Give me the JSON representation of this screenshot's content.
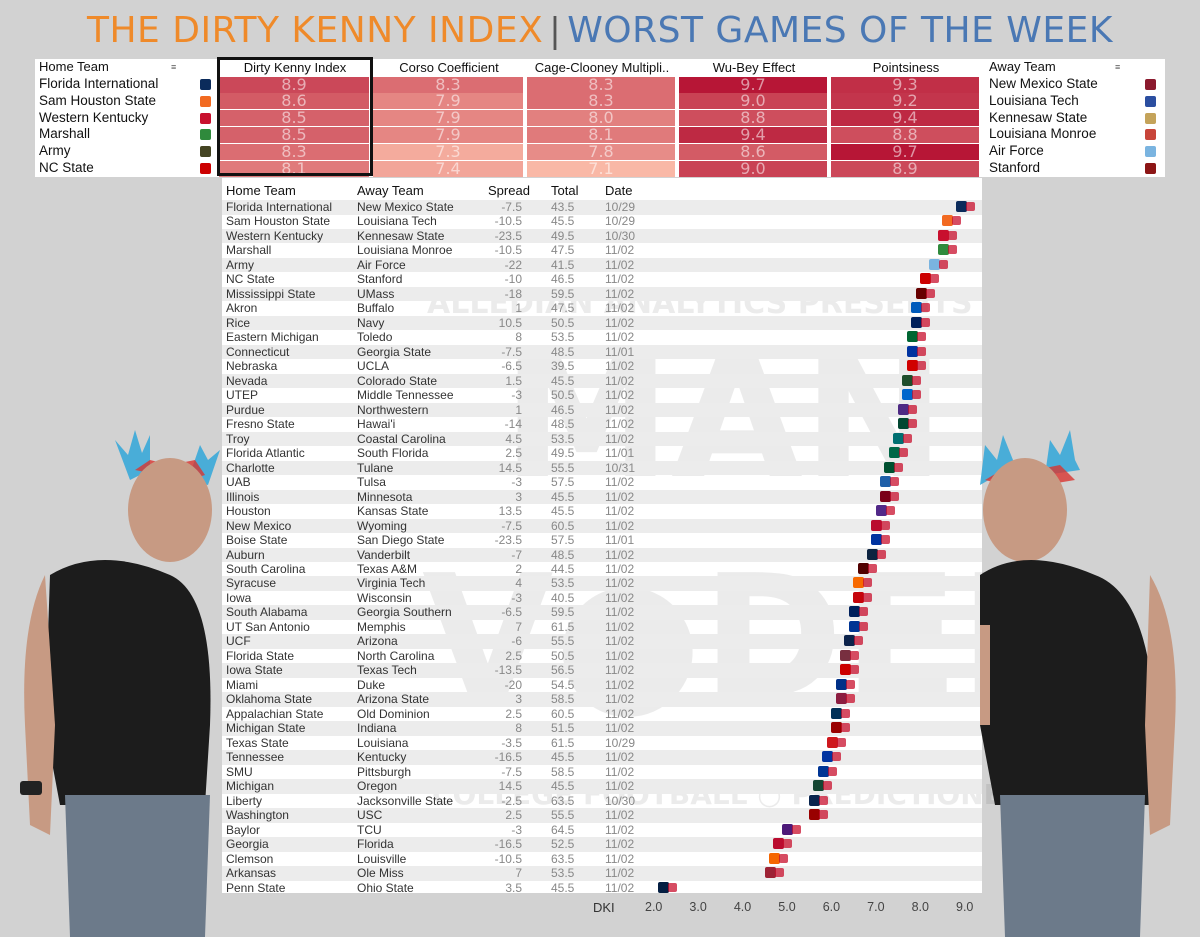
{
  "title": {
    "part1": "THE DIRTY KENNY INDEX",
    "separator": "|",
    "part2": "WORST GAMES OF THE WEEK"
  },
  "top_table": {
    "home_header": "Home Team",
    "away_header": "Away Team",
    "metric_headers": [
      "Dirty Kenny Index",
      "Corso Coefficient",
      "Cage-Clooney Multipli..",
      "Wu-Bey Effect",
      "Pointsiness"
    ],
    "rows": [
      {
        "home": "Florida International",
        "away": "New Mexico State",
        "values": [
          "8.9",
          "8.3",
          "8.3",
          "9.7",
          "9.3"
        ],
        "home_color": "#0b2b5b",
        "away_color": "#8b1a2e"
      },
      {
        "home": "Sam Houston State",
        "away": "Louisiana Tech",
        "values": [
          "8.6",
          "7.9",
          "8.3",
          "9.0",
          "9.2"
        ],
        "home_color": "#f26a21",
        "away_color": "#2b4ea0"
      },
      {
        "home": "Western Kentucky",
        "away": "Kennesaw State",
        "values": [
          "8.5",
          "7.9",
          "8.0",
          "8.8",
          "9.4"
        ],
        "home_color": "#c8102e",
        "away_color": "#c4a35a"
      },
      {
        "home": "Marshall",
        "away": "Louisiana Monroe",
        "values": [
          "8.5",
          "7.9",
          "8.1",
          "9.4",
          "8.8"
        ],
        "home_color": "#2f8a3c",
        "away_color": "#c8453a"
      },
      {
        "home": "Army",
        "away": "Air Force",
        "values": [
          "8.3",
          "7.3",
          "7.8",
          "8.6",
          "9.7"
        ],
        "home_color": "#444422",
        "away_color": "#7ab4e0"
      },
      {
        "home": "NC State",
        "away": "Stanford",
        "values": [
          "8.1",
          "7.4",
          "7.1",
          "9.0",
          "8.9"
        ],
        "home_color": "#cc0000",
        "away_color": "#8c1515"
      }
    ]
  },
  "main_table": {
    "headers": [
      "Home Team",
      "Away Team",
      "Spread",
      "Total",
      "Date"
    ],
    "axis_label": "DKI",
    "axis_ticks": [
      "2.0",
      "3.0",
      "4.0",
      "5.0",
      "6.0",
      "7.0",
      "8.0",
      "9.0"
    ]
  },
  "chart_data": {
    "type": "scatter",
    "title": "",
    "xlabel": "DKI",
    "xlim": [
      2.0,
      9.3
    ],
    "x_ticks": [
      2.0,
      3.0,
      4.0,
      5.0,
      6.0,
      7.0,
      8.0,
      9.0
    ],
    "games": [
      {
        "home": "Florida International",
        "away": "New Mexico State",
        "spread": "-7.5",
        "total": "43.5",
        "date": "10/29",
        "dki": 8.9,
        "color": "#0b2b5b"
      },
      {
        "home": "Sam Houston State",
        "away": "Louisiana Tech",
        "spread": "-10.5",
        "total": "45.5",
        "date": "10/29",
        "dki": 8.6,
        "color": "#f26a21"
      },
      {
        "home": "Western Kentucky",
        "away": "Kennesaw State",
        "spread": "-23.5",
        "total": "49.5",
        "date": "10/30",
        "dki": 8.5,
        "color": "#c8102e"
      },
      {
        "home": "Marshall",
        "away": "Louisiana Monroe",
        "spread": "-10.5",
        "total": "47.5",
        "date": "11/02",
        "dki": 8.5,
        "color": "#2f8a3c"
      },
      {
        "home": "Army",
        "away": "Air Force",
        "spread": "-22",
        "total": "41.5",
        "date": "11/02",
        "dki": 8.3,
        "color": "#7ab4e0"
      },
      {
        "home": "NC State",
        "away": "Stanford",
        "spread": "-10",
        "total": "46.5",
        "date": "11/02",
        "dki": 8.1,
        "color": "#cc0000"
      },
      {
        "home": "Mississippi State",
        "away": "UMass",
        "spread": "-18",
        "total": "59.5",
        "date": "11/02",
        "dki": 8.0,
        "color": "#660000"
      },
      {
        "home": "Akron",
        "away": "Buffalo",
        "spread": "1",
        "total": "47.5",
        "date": "11/02",
        "dki": 7.9,
        "color": "#005bbb"
      },
      {
        "home": "Rice",
        "away": "Navy",
        "spread": "10.5",
        "total": "50.5",
        "date": "11/02",
        "dki": 7.9,
        "color": "#00205b"
      },
      {
        "home": "Eastern Michigan",
        "away": "Toledo",
        "spread": "8",
        "total": "53.5",
        "date": "11/02",
        "dki": 7.8,
        "color": "#006633"
      },
      {
        "home": "Connecticut",
        "away": "Georgia State",
        "spread": "-7.5",
        "total": "48.5",
        "date": "11/01",
        "dki": 7.8,
        "color": "#0033a0"
      },
      {
        "home": "Nebraska",
        "away": "UCLA",
        "spread": "-6.5",
        "total": "39.5",
        "date": "11/02",
        "dki": 7.8,
        "color": "#d00000"
      },
      {
        "home": "Nevada",
        "away": "Colorado State",
        "spread": "1.5",
        "total": "45.5",
        "date": "11/02",
        "dki": 7.7,
        "color": "#1e4d2b"
      },
      {
        "home": "UTEP",
        "away": "Middle Tennessee",
        "spread": "-3",
        "total": "50.5",
        "date": "11/02",
        "dki": 7.7,
        "color": "#0066cc"
      },
      {
        "home": "Purdue",
        "away": "Northwestern",
        "spread": "1",
        "total": "46.5",
        "date": "11/02",
        "dki": 7.6,
        "color": "#4e2a84"
      },
      {
        "home": "Fresno State",
        "away": "Hawai'i",
        "spread": "-14",
        "total": "48.5",
        "date": "11/02",
        "dki": 7.6,
        "color": "#024731"
      },
      {
        "home": "Troy",
        "away": "Coastal Carolina",
        "spread": "4.5",
        "total": "53.5",
        "date": "11/02",
        "dki": 7.5,
        "color": "#006f71"
      },
      {
        "home": "Florida Atlantic",
        "away": "South Florida",
        "spread": "2.5",
        "total": "49.5",
        "date": "11/01",
        "dki": 7.4,
        "color": "#006747"
      },
      {
        "home": "Charlotte",
        "away": "Tulane",
        "spread": "14.5",
        "total": "55.5",
        "date": "10/31",
        "dki": 7.3,
        "color": "#005030"
      },
      {
        "home": "UAB",
        "away": "Tulsa",
        "spread": "-3",
        "total": "57.5",
        "date": "11/02",
        "dki": 7.2,
        "color": "#1e5fa8"
      },
      {
        "home": "Illinois",
        "away": "Minnesota",
        "spread": "3",
        "total": "45.5",
        "date": "11/02",
        "dki": 7.2,
        "color": "#7a0019"
      },
      {
        "home": "Houston",
        "away": "Kansas State",
        "spread": "13.5",
        "total": "45.5",
        "date": "11/02",
        "dki": 7.1,
        "color": "#512888"
      },
      {
        "home": "New Mexico",
        "away": "Wyoming",
        "spread": "-7.5",
        "total": "60.5",
        "date": "11/02",
        "dki": 7.0,
        "color": "#ba0c2f"
      },
      {
        "home": "Boise State",
        "away": "San Diego State",
        "spread": "-23.5",
        "total": "57.5",
        "date": "11/01",
        "dki": 7.0,
        "color": "#0033a0"
      },
      {
        "home": "Auburn",
        "away": "Vanderbilt",
        "spread": "-7",
        "total": "48.5",
        "date": "11/02",
        "dki": 6.9,
        "color": "#0c2340"
      },
      {
        "home": "South Carolina",
        "away": "Texas A&M",
        "spread": "2",
        "total": "44.5",
        "date": "11/02",
        "dki": 6.7,
        "color": "#500000"
      },
      {
        "home": "Syracuse",
        "away": "Virginia Tech",
        "spread": "4",
        "total": "53.5",
        "date": "11/02",
        "dki": 6.6,
        "color": "#f76900"
      },
      {
        "home": "Iowa",
        "away": "Wisconsin",
        "spread": "-3",
        "total": "40.5",
        "date": "11/02",
        "dki": 6.6,
        "color": "#c5050c"
      },
      {
        "home": "South Alabama",
        "away": "Georgia Southern",
        "spread": "-6.5",
        "total": "59.5",
        "date": "11/02",
        "dki": 6.5,
        "color": "#00205b"
      },
      {
        "home": "UT San Antonio",
        "away": "Memphis",
        "spread": "7",
        "total": "61.5",
        "date": "11/02",
        "dki": 6.5,
        "color": "#003594"
      },
      {
        "home": "UCF",
        "away": "Arizona",
        "spread": "-6",
        "total": "55.5",
        "date": "11/02",
        "dki": 6.4,
        "color": "#0c234b"
      },
      {
        "home": "Florida State",
        "away": "North Carolina",
        "spread": "2.5",
        "total": "50.5",
        "date": "11/02",
        "dki": 6.3,
        "color": "#782f40"
      },
      {
        "home": "Iowa State",
        "away": "Texas Tech",
        "spread": "-13.5",
        "total": "56.5",
        "date": "11/02",
        "dki": 6.3,
        "color": "#cc0000"
      },
      {
        "home": "Miami",
        "away": "Duke",
        "spread": "-20",
        "total": "54.5",
        "date": "11/02",
        "dki": 6.2,
        "color": "#003087"
      },
      {
        "home": "Oklahoma State",
        "away": "Arizona State",
        "spread": "3",
        "total": "58.5",
        "date": "11/02",
        "dki": 6.2,
        "color": "#8c1d40"
      },
      {
        "home": "Appalachian State",
        "away": "Old Dominion",
        "spread": "2.5",
        "total": "60.5",
        "date": "11/02",
        "dki": 6.1,
        "color": "#003057"
      },
      {
        "home": "Michigan State",
        "away": "Indiana",
        "spread": "8",
        "total": "51.5",
        "date": "11/02",
        "dki": 6.1,
        "color": "#990000"
      },
      {
        "home": "Texas State",
        "away": "Louisiana",
        "spread": "-3.5",
        "total": "61.5",
        "date": "10/29",
        "dki": 6.0,
        "color": "#ce181e"
      },
      {
        "home": "Tennessee",
        "away": "Kentucky",
        "spread": "-16.5",
        "total": "45.5",
        "date": "11/02",
        "dki": 5.9,
        "color": "#0033a0"
      },
      {
        "home": "SMU",
        "away": "Pittsburgh",
        "spread": "-7.5",
        "total": "58.5",
        "date": "11/02",
        "dki": 5.8,
        "color": "#003594"
      },
      {
        "home": "Michigan",
        "away": "Oregon",
        "spread": "14.5",
        "total": "45.5",
        "date": "11/02",
        "dki": 5.7,
        "color": "#154733"
      },
      {
        "home": "Liberty",
        "away": "Jacksonville State",
        "spread": "-2.5",
        "total": "63.5",
        "date": "10/30",
        "dki": 5.6,
        "color": "#0a254e"
      },
      {
        "home": "Washington",
        "away": "USC",
        "spread": "2.5",
        "total": "55.5",
        "date": "11/02",
        "dki": 5.6,
        "color": "#990000"
      },
      {
        "home": "Baylor",
        "away": "TCU",
        "spread": "-3",
        "total": "64.5",
        "date": "11/02",
        "dki": 5.0,
        "color": "#4d1979"
      },
      {
        "home": "Georgia",
        "away": "Florida",
        "spread": "-16.5",
        "total": "52.5",
        "date": "11/02",
        "dki": 4.8,
        "color": "#ba0c2f"
      },
      {
        "home": "Clemson",
        "away": "Louisville",
        "spread": "-10.5",
        "total": "63.5",
        "date": "11/02",
        "dki": 4.7,
        "color": "#f56600"
      },
      {
        "home": "Arkansas",
        "away": "Ole Miss",
        "spread": "7",
        "total": "53.5",
        "date": "11/02",
        "dki": 4.6,
        "color": "#9d2235"
      },
      {
        "home": "Penn State",
        "away": "Ohio State",
        "spread": "3.5",
        "total": "45.5",
        "date": "11/02",
        "dki": 2.2,
        "color": "#041e42"
      }
    ]
  }
}
